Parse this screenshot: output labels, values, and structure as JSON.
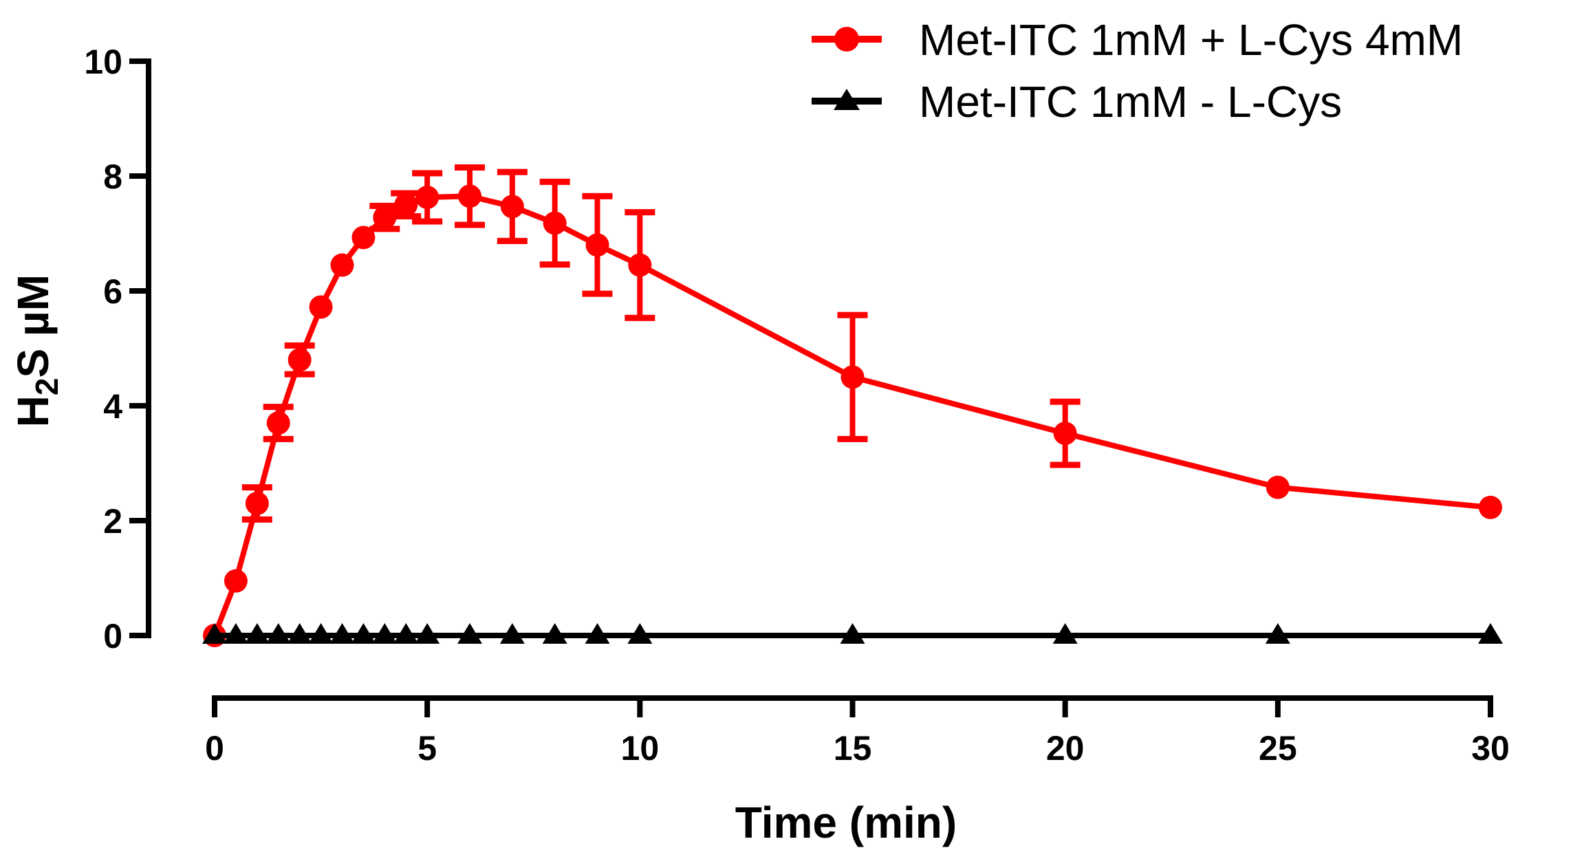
{
  "chart_data": {
    "type": "line",
    "title": "",
    "xlabel": "Time (min)",
    "ylabel": {
      "main": "H",
      "sub": "2",
      "rest": "S µM"
    },
    "xlim": [
      0,
      30
    ],
    "ylim": [
      0,
      10
    ],
    "x_ticks": [
      0,
      5,
      10,
      15,
      20,
      25,
      30
    ],
    "y_ticks": [
      0,
      2,
      4,
      6,
      8,
      10
    ],
    "legend_position": "top-right",
    "series": [
      {
        "name": "Met-ITC 1mM + L-Cys 4mM",
        "color": "#ff0000",
        "marker": "circle",
        "x": [
          0,
          0.5,
          1,
          1.5,
          2,
          2.5,
          3,
          3.5,
          4,
          4.5,
          5,
          6,
          7,
          8,
          9,
          10,
          15,
          20,
          25,
          30
        ],
        "y": [
          0,
          0.95,
          2.3,
          3.7,
          4.8,
          5.72,
          6.45,
          6.93,
          7.28,
          7.5,
          7.63,
          7.65,
          7.47,
          7.18,
          6.8,
          6.45,
          4.5,
          3.52,
          2.58,
          2.23
        ],
        "err": [
          0,
          0,
          0.28,
          0.28,
          0.25,
          0,
          0,
          0,
          0.2,
          0.2,
          0.42,
          0.5,
          0.6,
          0.72,
          0.85,
          0.92,
          1.08,
          0.55,
          0,
          0
        ]
      },
      {
        "name": "Met-ITC 1mM - L-Cys",
        "color": "#000000",
        "marker": "triangle",
        "x": [
          0,
          0.5,
          1,
          1.5,
          2,
          2.5,
          3,
          3.5,
          4,
          4.5,
          5,
          6,
          7,
          8,
          9,
          10,
          15,
          20,
          25,
          30
        ],
        "y": [
          0,
          0,
          0,
          0,
          0,
          0,
          0,
          0,
          0,
          0,
          0,
          0,
          0,
          0,
          0,
          0,
          0,
          0,
          0,
          0
        ],
        "err": []
      }
    ]
  }
}
